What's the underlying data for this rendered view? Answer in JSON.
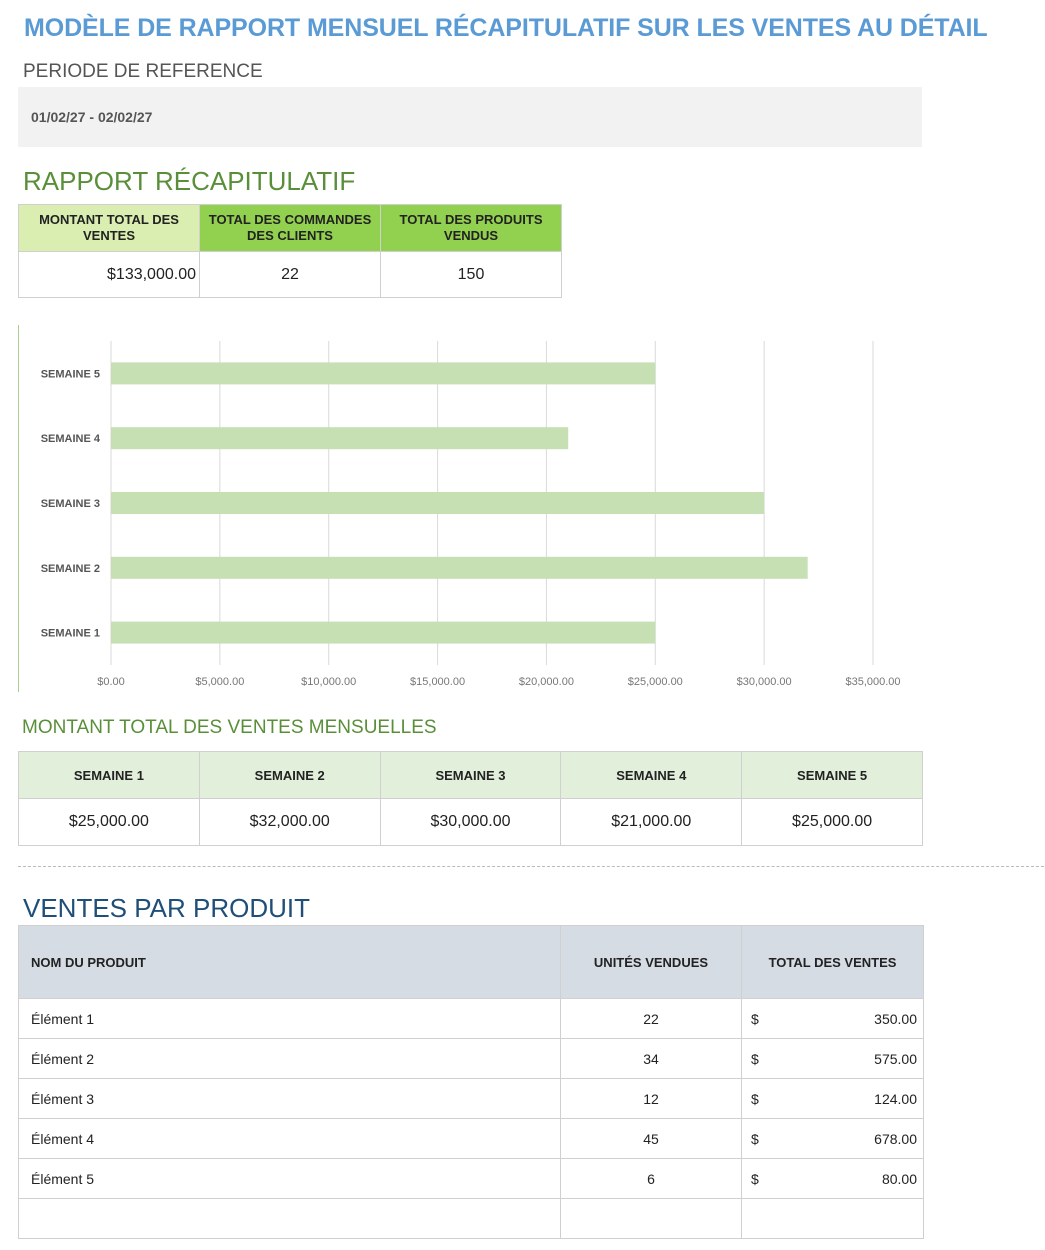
{
  "title": "MODÈLE DE RAPPORT MENSUEL RÉCAPITULATIF SUR LES VENTES AU DÉTAIL",
  "period": {
    "label": "PERIODE DE REFERENCE",
    "value": "01/02/27 - 02/02/27"
  },
  "summary": {
    "heading": "RAPPORT RÉCAPITULATIF",
    "headers": [
      "MONTANT TOTAL DES VENTES",
      "TOTAL DES COMMANDES DES CLIENTS",
      "TOTAL DES PRODUITS VENDUS"
    ],
    "values": [
      "$133,000.00",
      "22",
      "150"
    ]
  },
  "weekly": {
    "heading": "MONTANT TOTAL DES VENTES MENSUELLES",
    "headers": [
      "SEMAINE 1",
      "SEMAINE 2",
      "SEMAINE 3",
      "SEMAINE 4",
      "SEMAINE 5"
    ],
    "values": [
      "$25,000.00",
      "$32,000.00",
      "$30,000.00",
      "$21,000.00",
      "$25,000.00"
    ]
  },
  "products": {
    "heading": "VENTES PAR PRODUIT",
    "headers": [
      "NOM DU PRODUIT",
      "UNITÉS VENDUES",
      "TOTAL DES VENTES"
    ],
    "rows": [
      {
        "name": "Élément 1",
        "units": "22",
        "currency": "$",
        "total": "350.00"
      },
      {
        "name": "Élément 2",
        "units": "34",
        "currency": "$",
        "total": "575.00"
      },
      {
        "name": "Élément 3",
        "units": "12",
        "currency": "$",
        "total": "124.00"
      },
      {
        "name": "Élément 4",
        "units": "45",
        "currency": "$",
        "total": "678.00"
      },
      {
        "name": "Élément 5",
        "units": "6",
        "currency": "$",
        "total": "80.00"
      }
    ]
  },
  "colors": {
    "title": "#5b9bd5",
    "green_heading": "#5a8f3a",
    "header_light": "#d9eeb0",
    "header_green": "#92d050",
    "bar": "#c6e0b4",
    "product_header": "#d6dce4"
  },
  "chart_data": {
    "type": "bar",
    "orientation": "horizontal",
    "categories": [
      "SEMAINE 1",
      "SEMAINE 2",
      "SEMAINE 3",
      "SEMAINE 4",
      "SEMAINE 5"
    ],
    "values": [
      25000,
      32000,
      30000,
      21000,
      25000
    ],
    "xlim": [
      0,
      35000
    ],
    "xticks": [
      "$0.00",
      "$5,000.00",
      "$10,000.00",
      "$15,000.00",
      "$20,000.00",
      "$25,000.00",
      "$30,000.00",
      "$35,000.00"
    ],
    "grid": true,
    "bar_color": "#c6e0b4"
  }
}
